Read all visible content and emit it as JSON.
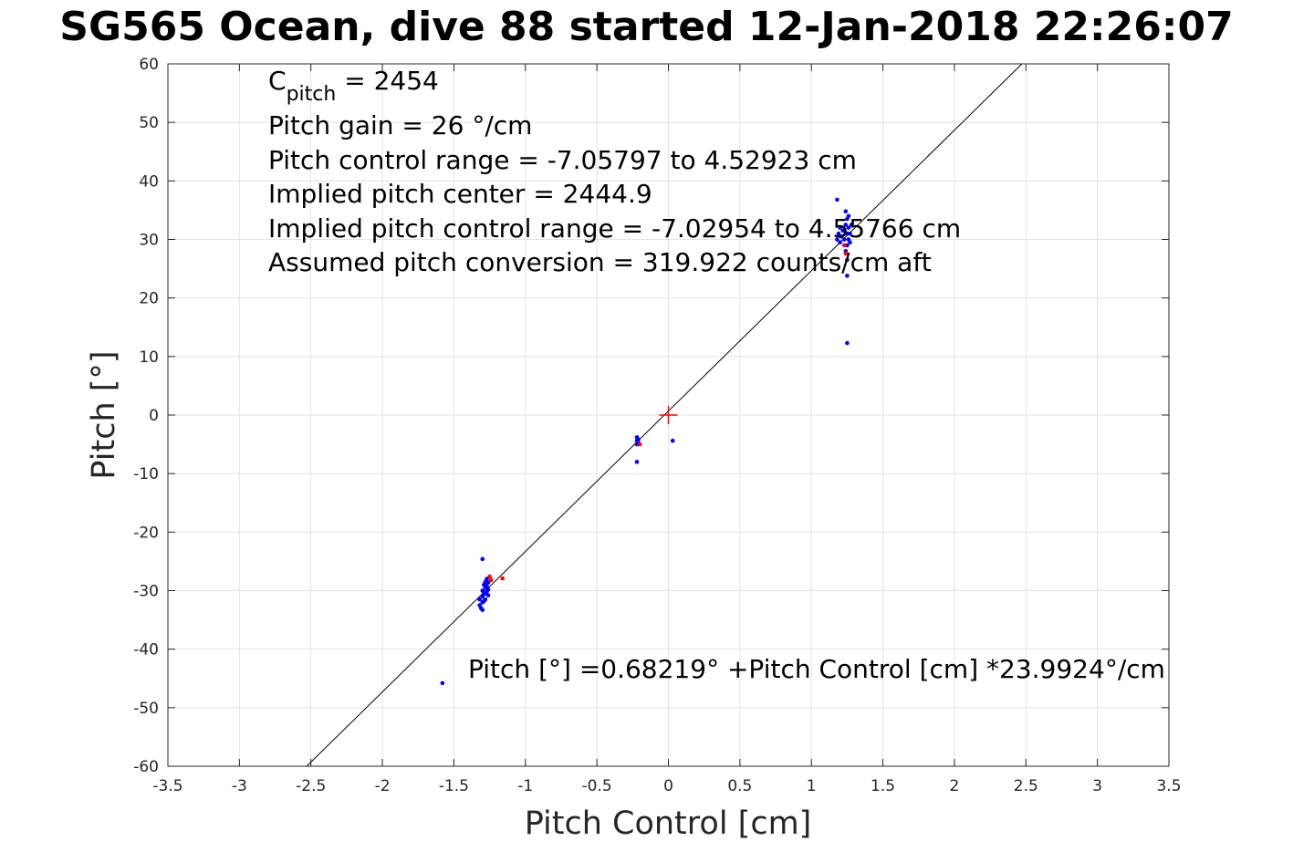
{
  "chart_data": {
    "type": "scatter",
    "title": "SG565 Ocean, dive 88 started 12-Jan-2018 22:26:07",
    "xlabel": "Pitch Control [cm]",
    "ylabel": "Pitch [°]",
    "xlim": [
      -3.5,
      3.5
    ],
    "ylim": [
      -60,
      60
    ],
    "xticks": [
      -3.5,
      -3,
      -2.5,
      -2,
      -1.5,
      -1,
      -0.5,
      0,
      0.5,
      1,
      1.5,
      2,
      2.5,
      3,
      3.5
    ],
    "xtick_labels": [
      "-3.5",
      "-3",
      "-2.5",
      "-2",
      "-1.5",
      "-1",
      "-0.5",
      "0",
      "0.5",
      "1",
      "1.5",
      "2",
      "2.5",
      "3",
      "3.5"
    ],
    "yticks": [
      -60,
      -50,
      -40,
      -30,
      -20,
      -10,
      0,
      10,
      20,
      30,
      40,
      50,
      60
    ],
    "ytick_labels": [
      "-60",
      "-50",
      "-40",
      "-30",
      "-20",
      "-10",
      "0",
      "10",
      "20",
      "30",
      "40",
      "50",
      "60"
    ],
    "grid": true,
    "fit_line": {
      "intercept": 0.68219,
      "slope": 23.9924,
      "color": "#000000"
    },
    "center_marker": {
      "x": 0,
      "y": 0,
      "color": "#ff0000",
      "shape": "plus"
    },
    "series": [
      {
        "color": "#0000ff",
        "points": [
          [
            -1.58,
            -45.8
          ],
          [
            -1.3,
            -24.6
          ],
          [
            -1.32,
            -31.5
          ],
          [
            -1.32,
            -32.5
          ],
          [
            -1.31,
            -33.0
          ],
          [
            -1.3,
            -30.0
          ],
          [
            -1.3,
            -31.0
          ],
          [
            -1.3,
            -32.0
          ],
          [
            -1.3,
            -33.3
          ],
          [
            -1.29,
            -29.0
          ],
          [
            -1.29,
            -30.5
          ],
          [
            -1.29,
            -31.8
          ],
          [
            -1.28,
            -28.5
          ],
          [
            -1.28,
            -29.5
          ],
          [
            -1.28,
            -30.5
          ],
          [
            -1.28,
            -31.5
          ],
          [
            -1.27,
            -28.0
          ],
          [
            -1.27,
            -29.2
          ],
          [
            -1.27,
            -30.2
          ],
          [
            -1.26,
            -28.6
          ],
          [
            -1.26,
            -29.8
          ],
          [
            -1.26,
            -30.8
          ],
          [
            -0.22,
            -3.8
          ],
          [
            -0.22,
            -4.4
          ],
          [
            -0.22,
            -5.0
          ],
          [
            -0.21,
            -4.2
          ],
          [
            -0.21,
            -4.8
          ],
          [
            -0.22,
            -8.0
          ],
          [
            0.03,
            -4.4
          ],
          [
            1.18,
            36.8
          ],
          [
            1.18,
            30.0
          ],
          [
            1.19,
            31.0
          ],
          [
            1.2,
            29.5
          ],
          [
            1.2,
            32.0
          ],
          [
            1.21,
            30.5
          ],
          [
            1.22,
            31.5
          ],
          [
            1.23,
            30.0
          ],
          [
            1.24,
            28.0
          ],
          [
            1.24,
            32.5
          ],
          [
            1.24,
            34.8
          ],
          [
            1.25,
            29.0
          ],
          [
            1.25,
            31.0
          ],
          [
            1.25,
            33.5
          ],
          [
            1.26,
            30.0
          ],
          [
            1.26,
            32.0
          ],
          [
            1.26,
            34.0
          ],
          [
            1.27,
            31.0
          ],
          [
            1.27,
            29.5
          ],
          [
            1.28,
            32.5
          ],
          [
            1.25,
            26.5
          ],
          [
            1.25,
            23.8
          ],
          [
            1.25,
            12.3
          ]
        ]
      },
      {
        "color": "#ff0000",
        "points": [
          [
            -1.25,
            -27.6
          ],
          [
            -1.16,
            -27.9
          ],
          [
            -1.24,
            -28.2
          ],
          [
            -0.2,
            -5.0
          ],
          [
            1.24,
            27.6
          ],
          [
            1.23,
            29.0
          ]
        ]
      }
    ],
    "annotations": {
      "c_pitch_main": "C",
      "c_pitch_sub": "pitch",
      "c_pitch_value": " = 2454",
      "pitch_gain": "Pitch gain = 26 °/cm",
      "control_range": "Pitch control range = -7.05797 to 4.52923 cm",
      "implied_center": "Implied pitch center = 2444.9",
      "implied_range": "Implied pitch control range = -7.02954 to 4.55766 cm",
      "conversion": "Assumed pitch conversion = 319.922 counts/cm aft",
      "fit_equation": "Pitch [°] =0.68219° +Pitch Control [cm] *23.9924°/cm"
    }
  }
}
